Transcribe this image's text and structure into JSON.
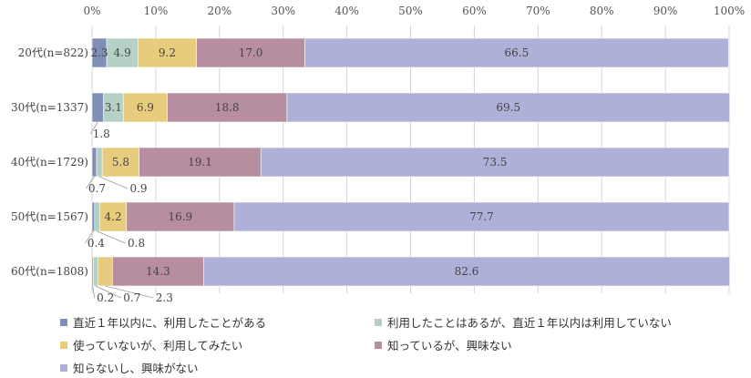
{
  "chart_data": {
    "type": "bar",
    "orientation": "horizontal",
    "stacked": true,
    "xlim": [
      0,
      100
    ],
    "ticks": [
      "0%",
      "10%",
      "20%",
      "30%",
      "40%",
      "50%",
      "60%",
      "70%",
      "80%",
      "90%",
      "100%"
    ],
    "grid": true,
    "legend_position": "bottom",
    "categories": [
      "20代(n=822)",
      "30代(n=1337)",
      "40代(n=1729)",
      "50代(n=1567)",
      "60代(n=1808)"
    ],
    "series": [
      {
        "name": "直近１年以内に、利用したことがある",
        "color": "#7f8fb6",
        "values": [
          2.3,
          1.8,
          0.7,
          0.4,
          0.2
        ],
        "labels": [
          "2.3",
          "1.8",
          "0.7",
          "0.4",
          "0.2"
        ]
      },
      {
        "name": "利用したことはあるが、直近１年以内は利用していない",
        "color": "#b5d1c6",
        "values": [
          4.9,
          3.1,
          0.9,
          0.8,
          0.7
        ],
        "labels": [
          "4.9",
          "3.1",
          "0.9",
          "0.8",
          "0.7"
        ]
      },
      {
        "name": "使っていないが、利用してみたい",
        "color": "#e8cc7e",
        "values": [
          9.2,
          6.9,
          5.8,
          4.2,
          2.3
        ],
        "labels": [
          "9.2",
          "6.9",
          "5.8",
          "4.2",
          "2.3"
        ]
      },
      {
        "name": "知っているが、興味ない",
        "color": "#b78ea0",
        "values": [
          17.0,
          18.8,
          19.1,
          16.9,
          14.3
        ],
        "labels": [
          "17.0",
          "18.8",
          "19.1",
          "16.9",
          "14.3"
        ]
      },
      {
        "name": "知らないし、興味がない",
        "color": "#aeb0d8",
        "values": [
          66.5,
          69.5,
          73.5,
          77.7,
          82.6
        ],
        "labels": [
          "66.5",
          "69.5",
          "73.5",
          "77.7",
          "82.6"
        ]
      }
    ]
  }
}
